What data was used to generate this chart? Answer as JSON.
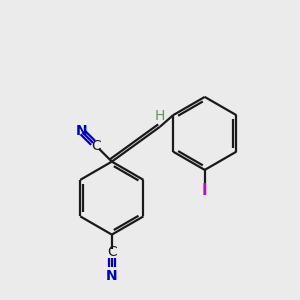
{
  "background_color": "#ebebeb",
  "bond_color": "#1a1a1a",
  "cn_color": "#0000cc",
  "iodine_color": "#cc00cc",
  "h_color": "#6b8e6b",
  "c_color": "#1a1a1a",
  "figsize": [
    3.0,
    3.0
  ],
  "dpi": 100,
  "xlim": [
    0,
    10
  ],
  "ylim": [
    0,
    10
  ]
}
